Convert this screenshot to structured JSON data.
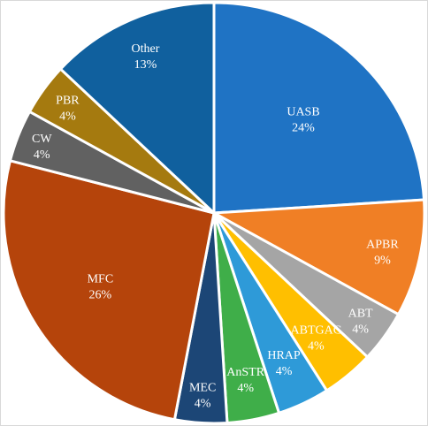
{
  "chart_data": {
    "type": "pie",
    "start_angle_deg": 0,
    "direction": "clockwise",
    "slices": [
      {
        "label": "UASB",
        "percent_label": "24%",
        "value": 24,
        "color": "#1f73c4"
      },
      {
        "label": "APBR",
        "percent_label": "9%",
        "value": 9,
        "color": "#f07f25"
      },
      {
        "label": "ABT",
        "percent_label": "4%",
        "value": 4,
        "color": "#a5a5a5"
      },
      {
        "label": "ABTGAC",
        "percent_label": "4%",
        "value": 4,
        "color": "#ffbf00"
      },
      {
        "label": "HRAP",
        "percent_label": "4%",
        "value": 4,
        "color": "#2e9ad8"
      },
      {
        "label": "AnSTR",
        "percent_label": "4%",
        "value": 4,
        "color": "#3fae49"
      },
      {
        "label": "MEC",
        "percent_label": "4%",
        "value": 4,
        "color": "#1c4676"
      },
      {
        "label": "MFC",
        "percent_label": "26%",
        "value": 26,
        "color": "#b5440b"
      },
      {
        "label": "CW",
        "percent_label": "4%",
        "value": 4,
        "color": "#616161"
      },
      {
        "label": "PBR",
        "percent_label": "4%",
        "value": 4,
        "color": "#a57a0f"
      },
      {
        "label": "Other",
        "percent_label": "13%",
        "value": 13,
        "color": "#10609e"
      }
    ]
  }
}
